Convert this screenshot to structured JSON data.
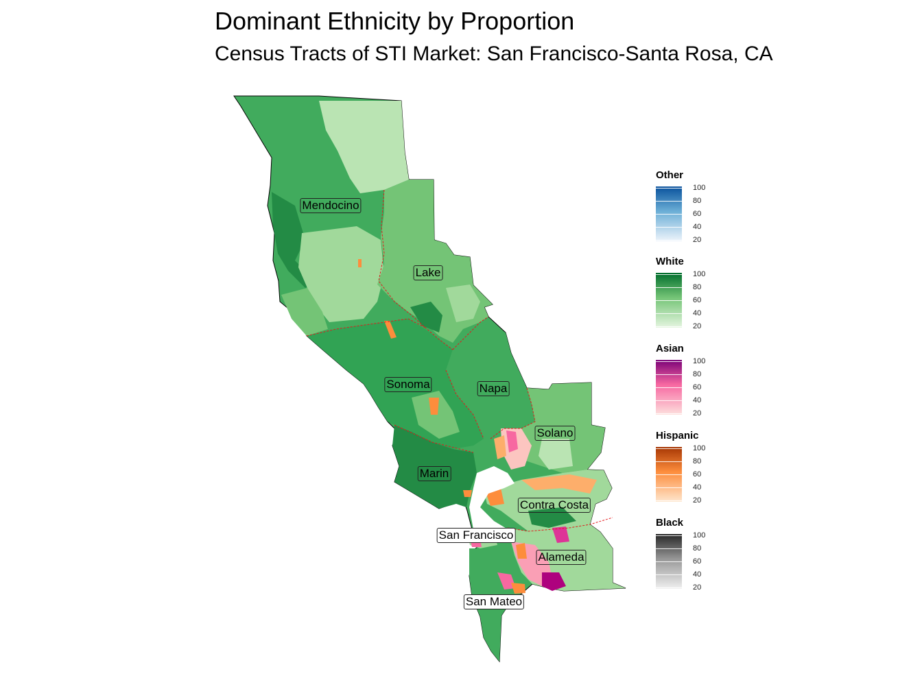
{
  "title": "Dominant Ethnicity by Proportion",
  "subtitle": "Census Tracts of STI Market: San Francisco-Santa Rosa, CA",
  "counties": [
    {
      "name": "Mendocino",
      "light": false
    },
    {
      "name": "Lake",
      "light": false
    },
    {
      "name": "Sonoma",
      "light": false
    },
    {
      "name": "Napa",
      "light": false
    },
    {
      "name": "Solano",
      "light": false
    },
    {
      "name": "Marin",
      "light": false
    },
    {
      "name": "Contra Costa",
      "light": false
    },
    {
      "name": "San Francisco",
      "light": true
    },
    {
      "name": "Alameda",
      "light": false
    },
    {
      "name": "San Mateo",
      "light": true
    }
  ],
  "legend": [
    {
      "title": "Other",
      "low": "#eef4fb",
      "high": "#08519c",
      "ticks": [
        "100",
        "80",
        "60",
        "40",
        "20"
      ]
    },
    {
      "title": "White",
      "low": "#e5f5e0",
      "high": "#006d2c",
      "ticks": [
        "100",
        "80",
        "60",
        "40",
        "20"
      ]
    },
    {
      "title": "Asian",
      "low": "#fde0dd",
      "high": "#7a0177",
      "ticks": [
        "100",
        "80",
        "60",
        "40",
        "20"
      ]
    },
    {
      "title": "Hispanic",
      "low": "#fee6ce",
      "high": "#a63603",
      "ticks": [
        "100",
        "80",
        "60",
        "40",
        "20"
      ]
    },
    {
      "title": "Black",
      "low": "#f0f0f0",
      "high": "#252525",
      "ticks": [
        "100",
        "80",
        "60",
        "40",
        "20"
      ]
    }
  ],
  "colors": {
    "white_light": "#bae4b3",
    "white_mid": "#74c476",
    "white_dark": "#31a354",
    "white_darker": "#238b45",
    "hispanic": "#fd8d3c",
    "asian": "#f768a1",
    "asian_dark": "#ae017e",
    "county_border": "#e31a1c"
  }
}
